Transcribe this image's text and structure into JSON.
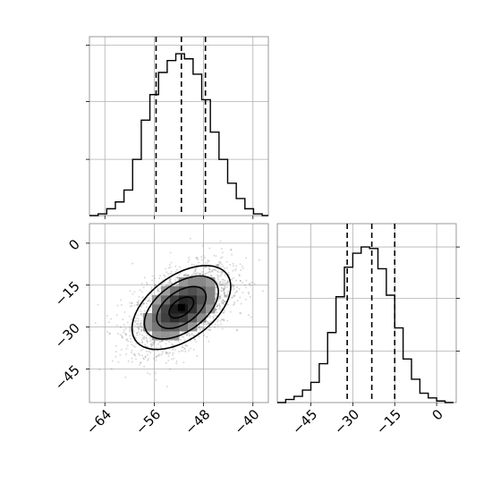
{
  "chart_data": [
    {
      "id": "hist-x",
      "type": "histogram",
      "x_range": [
        -66.5,
        -37.5
      ],
      "y_range": [
        0,
        1.05
      ],
      "bins": [
        -66.5,
        -65.1,
        -63.7,
        -62.3,
        -60.9,
        -59.5,
        -58.1,
        -56.7,
        -55.3,
        -53.9,
        -52.5,
        -51.1,
        -49.7,
        -48.3,
        -46.9,
        -45.5,
        -44.1,
        -42.7,
        -41.3,
        -39.9,
        -38.5,
        -37.5
      ],
      "counts": [
        0.0,
        0.01,
        0.04,
        0.08,
        0.15,
        0.33,
        0.56,
        0.71,
        0.84,
        0.91,
        0.95,
        0.92,
        0.83,
        0.68,
        0.49,
        0.33,
        0.19,
        0.1,
        0.04,
        0.01,
        0.0
      ],
      "quantiles": [
        -55.7,
        -51.6,
        -47.7
      ],
      "xticks": [
        -64,
        -56,
        -48,
        -40
      ],
      "tick_labels_shown": false
    },
    {
      "id": "scatter-xy",
      "type": "heatmap",
      "x_range": [
        -66.5,
        -37.5
      ],
      "y_range": [
        -57,
        7
      ],
      "center": [
        -51.6,
        -23
      ],
      "spread": [
        4.0,
        7.5
      ],
      "correlation": 0.5,
      "contour_levels_sigma": [
        0.5,
        1.0,
        1.5,
        2.0
      ],
      "xticks": [
        -64,
        -56,
        -48,
        -40
      ],
      "yticks": [
        0,
        -15,
        -30,
        -45
      ],
      "xtick_labels": [
        "−64",
        "−56",
        "−48",
        "−40"
      ],
      "ytick_labels": [
        "0",
        "−15",
        "−30",
        "−45"
      ]
    },
    {
      "id": "hist-y",
      "type": "histogram",
      "x_range": [
        -57,
        7
      ],
      "y_range": [
        0,
        1.15
      ],
      "bins": [
        -57,
        -54,
        -51,
        -48,
        -45,
        -42,
        -39,
        -36,
        -33,
        -30,
        -27,
        -24,
        -21,
        -18,
        -15,
        -12,
        -9,
        -6,
        -3,
        0,
        3,
        6
      ],
      "counts": [
        0.0,
        0.02,
        0.04,
        0.08,
        0.13,
        0.25,
        0.45,
        0.68,
        0.87,
        0.96,
        1.0,
        0.99,
        0.86,
        0.69,
        0.48,
        0.28,
        0.15,
        0.06,
        0.03,
        0.01,
        0.0
      ],
      "quantiles": [
        -32.0,
        -23.2,
        -15.0
      ],
      "xticks": [
        -45,
        -30,
        -15,
        0
      ],
      "xtick_labels": [
        "−45",
        "−30",
        "−15",
        "0"
      ]
    }
  ]
}
